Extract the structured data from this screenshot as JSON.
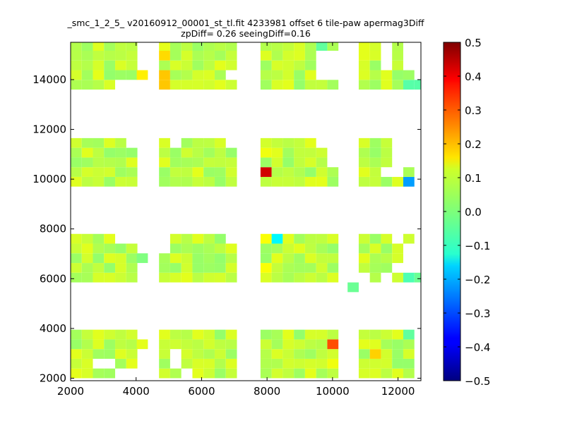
{
  "chart_data": {
    "type": "heatmap",
    "title_lines": [
      "_smc_1_2_5_ v20160912_00001_st_tl.fit 4233981 offset 6 tile-paw apermag3Diff",
      "zpDiff= 0.26 seeingDiff=0.16"
    ],
    "xlabel": "",
    "ylabel": "",
    "xlim": [
      2000,
      12700
    ],
    "ylim": [
      1900,
      15500
    ],
    "xticks": [
      "2000",
      "4000",
      "6000",
      "8000",
      "10000",
      "12000"
    ],
    "yticks": [
      "2000",
      "4000",
      "6000",
      "8000",
      "10000",
      "12000",
      "14000"
    ],
    "colorbar": {
      "colormap": "jet",
      "range": [
        -0.5,
        0.5
      ],
      "ticks": [
        "0.5",
        "0.4",
        "0.3",
        "0.2",
        "0.1",
        "0.0",
        "−0.1",
        "−0.2",
        "−0.3",
        "−0.4",
        "−0.5"
      ]
    },
    "cell_size": [
      340,
      390
    ],
    "column_blocks": [
      [
        2000,
        2340,
        2680,
        3020,
        3360,
        3700
      ],
      [
        4700,
        5040,
        5380,
        5720,
        6060,
        6400,
        6740
      ],
      [
        7800,
        8140,
        8480,
        8820,
        9160,
        9500,
        9840
      ],
      [
        10800,
        11140,
        11480,
        11820,
        12160
      ]
    ],
    "row_blocks": [
      [
        2000,
        2390,
        2780,
        3170,
        3560
      ],
      [
        5850,
        6240,
        6630,
        7020,
        7410
      ],
      [
        9700,
        10090,
        10480,
        10870,
        11260
      ],
      [
        13600,
        13990,
        14380,
        14770,
        15160
      ]
    ],
    "typical_value": 0.06,
    "special_cells": [
      {
        "x": 7800,
        "y": 10090,
        "value": 0.42
      },
      {
        "x": 12160,
        "y": 9700,
        "value": -0.22
      },
      {
        "x": 8140,
        "y": 7410,
        "value": -0.13
      },
      {
        "x": 9840,
        "y": 3170,
        "value": 0.3
      },
      {
        "x": 11140,
        "y": 2780,
        "value": 0.17
      },
      {
        "x": 4700,
        "y": 14770,
        "value": 0.16
      },
      {
        "x": 4700,
        "y": 13990,
        "value": 0.18
      },
      {
        "x": 4700,
        "y": 13600,
        "value": 0.18
      },
      {
        "x": 4020,
        "y": 13990,
        "value": 0.14
      },
      {
        "x": 7800,
        "y": 6240,
        "value": 0.12
      },
      {
        "x": 7800,
        "y": 7410,
        "value": 0.12
      },
      {
        "x": 7800,
        "y": 10870,
        "value": 0.11
      },
      {
        "x": 9840,
        "y": 2390,
        "value": 0.11
      },
      {
        "x": 12160,
        "y": 13600,
        "value": -0.04
      },
      {
        "x": 12500,
        "y": 13600,
        "value": -0.04
      },
      {
        "x": 12160,
        "y": 5850,
        "value": -0.05
      },
      {
        "x": 12500,
        "y": 5850,
        "value": -0.02
      },
      {
        "x": 12160,
        "y": 3560,
        "value": -0.03
      },
      {
        "x": 10460,
        "y": 5460,
        "value": -0.02
      },
      {
        "x": 4020,
        "y": 6630,
        "value": 0.0
      },
      {
        "x": 4020,
        "y": 3170,
        "value": 0.1
      },
      {
        "x": 9500,
        "y": 15160,
        "value": -0.03
      }
    ],
    "missing_cells": [
      [
        2680,
        2390
      ],
      [
        3020,
        2390
      ],
      [
        3360,
        2000
      ],
      [
        3700,
        2000
      ],
      [
        5040,
        2390
      ],
      [
        5040,
        2780
      ],
      [
        5380,
        2000
      ],
      [
        3700,
        7410
      ],
      [
        3360,
        7410
      ],
      [
        6740,
        7410
      ],
      [
        4700,
        7410
      ],
      [
        4700,
        7020
      ],
      [
        11820,
        7410
      ],
      [
        11820,
        6240
      ],
      [
        12160,
        6240
      ],
      [
        12160,
        7020
      ],
      [
        12160,
        6630
      ],
      [
        11480,
        5850
      ],
      [
        10800,
        5850
      ],
      [
        5040,
        11260
      ],
      [
        3700,
        11260
      ],
      [
        6740,
        11260
      ],
      [
        9500,
        11260
      ],
      [
        9840,
        11260
      ],
      [
        9840,
        10870
      ],
      [
        9840,
        10480
      ],
      [
        11480,
        10090
      ],
      [
        11820,
        10090
      ],
      [
        11820,
        10480
      ],
      [
        11820,
        10870
      ],
      [
        11820,
        11260
      ],
      [
        12160,
        11260
      ],
      [
        12160,
        10870
      ],
      [
        12160,
        10480
      ],
      [
        12160,
        15160
      ],
      [
        12160,
        14770
      ],
      [
        12160,
        14380
      ],
      [
        11480,
        14380
      ],
      [
        11480,
        14770
      ],
      [
        11480,
        15160
      ],
      [
        9840,
        13990
      ],
      [
        9840,
        14380
      ],
      [
        9840,
        14770
      ],
      [
        9500,
        13990
      ],
      [
        9500,
        14380
      ],
      [
        9500,
        14770
      ],
      [
        6740,
        13990
      ],
      [
        3700,
        13600
      ],
      [
        3360,
        13600
      ]
    ]
  }
}
